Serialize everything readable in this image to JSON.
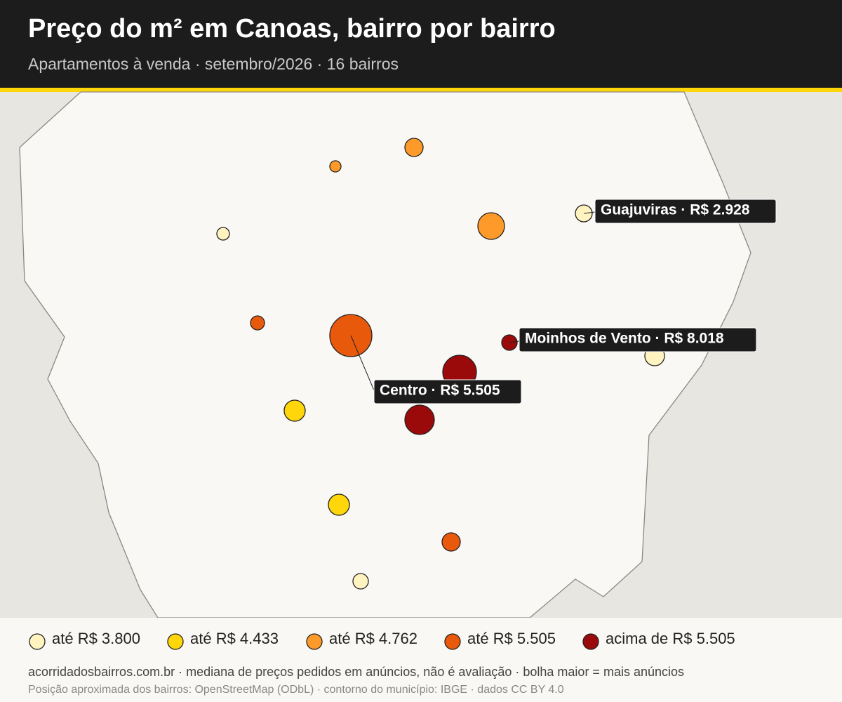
{
  "header": {
    "title": "Preço do m² em Canoas, bairro por bairro",
    "subtitle": "Apartamentos à venda · setembro/2026 · 16 bairros"
  },
  "callouts": [
    {
      "label": "Guajuviras · R$ 2.928"
    },
    {
      "label": "Moinhos de Vento · R$ 8.018"
    },
    {
      "label": "Centro · R$ 5.505"
    }
  ],
  "legend": [
    {
      "label": "até R$ 3.800",
      "color": "#fff3bf"
    },
    {
      "label": "até R$ 4.433",
      "color": "#ffd60a"
    },
    {
      "label": "até R$ 4.762",
      "color": "#fd9a2a"
    },
    {
      "label": "até R$ 5.505",
      "color": "#e8590c"
    },
    {
      "label": "acima de R$ 5.505",
      "color": "#9b0a0a"
    }
  ],
  "footer": {
    "source": "acorridadosbairros.com.br · mediana de preços pedidos em anúncios, não é avaliação · bolha maior = mais anúncios",
    "credits": "Posição aproximada dos bairros: OpenStreetMap (ODbL) · contorno do município: IBGE · dados CC BY 4.0"
  }
}
